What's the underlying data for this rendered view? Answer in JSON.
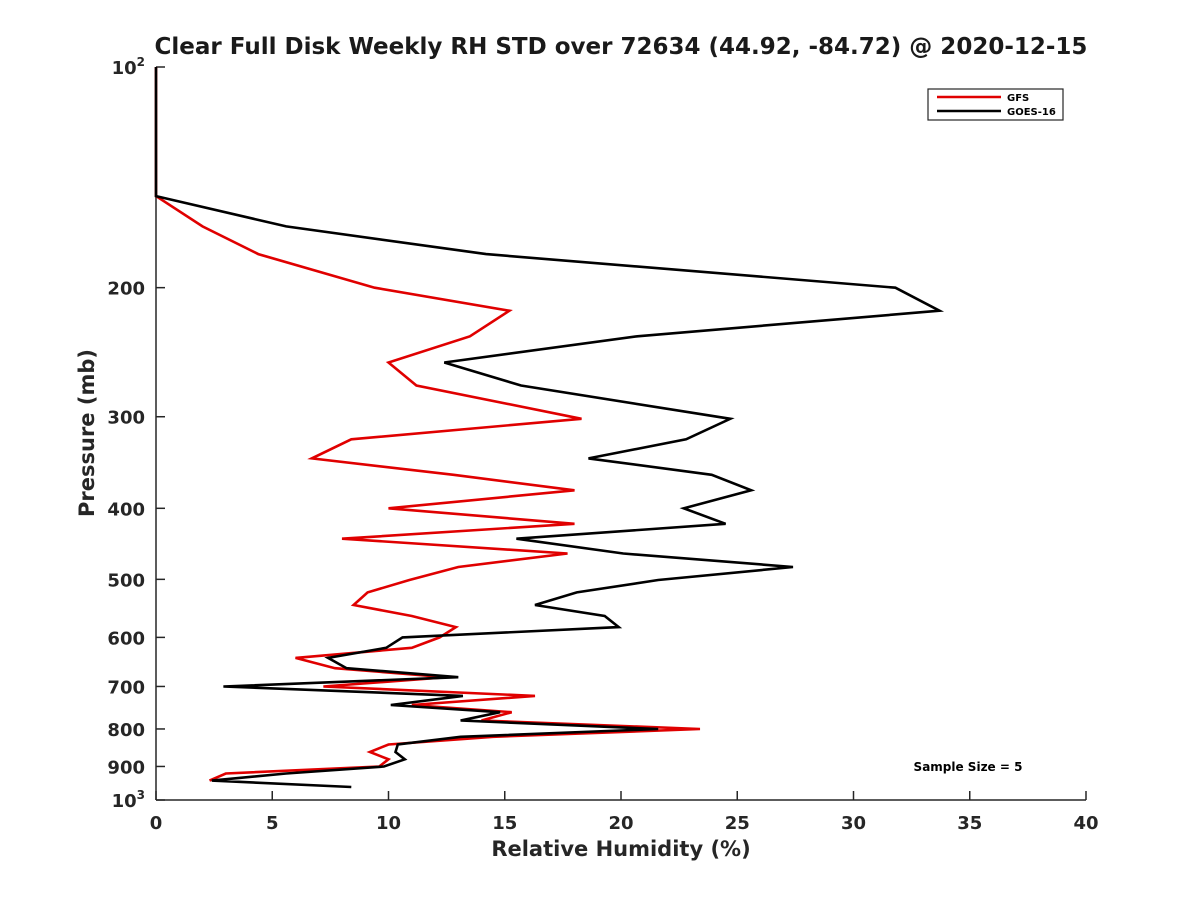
{
  "chart_data": {
    "type": "line",
    "title": "Clear Full Disk Weekly RH STD over 72634 (44.92, -84.72) @ 2020-12-15",
    "xlabel": "Relative Humidity (%)",
    "ylabel": "Pressure (mb)",
    "xlim": [
      0,
      40
    ],
    "ylim": [
      100,
      1000
    ],
    "y_scale": "log",
    "y_reversed": true,
    "x_ticks": [
      0,
      5,
      10,
      15,
      20,
      25,
      30,
      35,
      40
    ],
    "x_tick_labels": [
      "0",
      "5",
      "10",
      "15",
      "20",
      "25",
      "30",
      "35",
      "40"
    ],
    "y_ticks": [
      {
        "value": 100,
        "base": "10",
        "sup": "2"
      },
      {
        "value": 200,
        "label": "200"
      },
      {
        "value": 300,
        "label": "300"
      },
      {
        "value": 400,
        "label": "400"
      },
      {
        "value": 500,
        "label": "500"
      },
      {
        "value": 600,
        "label": "600"
      },
      {
        "value": 700,
        "label": "700"
      },
      {
        "value": 800,
        "label": "800"
      },
      {
        "value": 900,
        "label": "900"
      },
      {
        "value": 1000,
        "base": "10",
        "sup": "3"
      }
    ],
    "legend_position": "top-right",
    "grid": false,
    "annotation": "Sample Size = 5",
    "series": [
      {
        "name": "GFS",
        "color": "#e00000",
        "points": [
          [
            0,
            100
          ],
          [
            0,
            150
          ],
          [
            2.0,
            165
          ],
          [
            4.4,
            180
          ],
          [
            9.4,
            200
          ],
          [
            15.2,
            215
          ],
          [
            13.5,
            233
          ],
          [
            10.0,
            253
          ],
          [
            11.2,
            272
          ],
          [
            18.3,
            302
          ],
          [
            8.4,
            322
          ],
          [
            6.7,
            342
          ],
          [
            12.8,
            360
          ],
          [
            18.0,
            378
          ],
          [
            10.0,
            400
          ],
          [
            18.0,
            420
          ],
          [
            8.0,
            440
          ],
          [
            17.7,
            461
          ],
          [
            13.0,
            481
          ],
          [
            10.9,
            501
          ],
          [
            9.1,
            521
          ],
          [
            8.5,
            542
          ],
          [
            11.0,
            561
          ],
          [
            12.9,
            581
          ],
          [
            12.2,
            600
          ],
          [
            11.0,
            620
          ],
          [
            6.0,
            640
          ],
          [
            7.7,
            661
          ],
          [
            12.5,
            680
          ],
          [
            7.2,
            700
          ],
          [
            16.3,
            721
          ],
          [
            11.0,
            742
          ],
          [
            15.3,
            759
          ],
          [
            14.0,
            779
          ],
          [
            23.4,
            800
          ],
          [
            14.5,
            820
          ],
          [
            10.0,
            840
          ],
          [
            9.2,
            860
          ],
          [
            10.0,
            880
          ],
          [
            9.6,
            900
          ],
          [
            3.0,
            920
          ],
          [
            2.3,
            941
          ]
        ]
      },
      {
        "name": "GOES-16",
        "color": "#000000",
        "points": [
          [
            0,
            100
          ],
          [
            0,
            150
          ],
          [
            5.6,
            165
          ],
          [
            14.2,
            180
          ],
          [
            31.8,
            200
          ],
          [
            33.7,
            215
          ],
          [
            20.7,
            233
          ],
          [
            12.4,
            253
          ],
          [
            15.7,
            272
          ],
          [
            24.7,
            302
          ],
          [
            22.8,
            322
          ],
          [
            18.6,
            342
          ],
          [
            23.9,
            360
          ],
          [
            25.6,
            378
          ],
          [
            22.7,
            400
          ],
          [
            24.5,
            420
          ],
          [
            15.5,
            440
          ],
          [
            20.1,
            461
          ],
          [
            27.4,
            481
          ],
          [
            21.6,
            501
          ],
          [
            18.1,
            521
          ],
          [
            16.3,
            542
          ],
          [
            19.3,
            561
          ],
          [
            19.9,
            581
          ],
          [
            10.6,
            600
          ],
          [
            9.9,
            620
          ],
          [
            7.4,
            640
          ],
          [
            8.2,
            661
          ],
          [
            13.0,
            680
          ],
          [
            2.9,
            700
          ],
          [
            13.2,
            721
          ],
          [
            10.1,
            742
          ],
          [
            14.8,
            759
          ],
          [
            13.1,
            779
          ],
          [
            21.6,
            800
          ],
          [
            13.1,
            820
          ],
          [
            10.4,
            840
          ],
          [
            10.3,
            860
          ],
          [
            10.7,
            880
          ],
          [
            9.8,
            900
          ],
          [
            5.6,
            920
          ],
          [
            2.4,
            941
          ],
          [
            8.4,
            960
          ]
        ]
      }
    ]
  }
}
